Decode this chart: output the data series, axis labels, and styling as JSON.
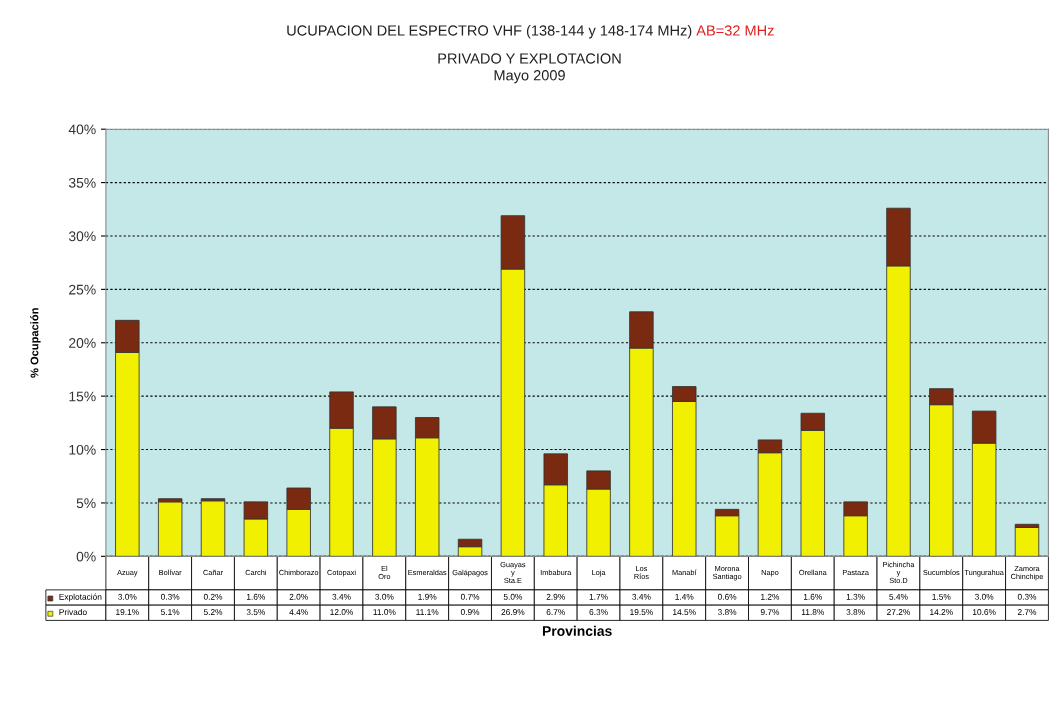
{
  "chart_data": {
    "type": "bar",
    "title": "UCUPACION DEL ESPECTRO VHF (138-144 y 148-174 MHz)",
    "subtitle": "PRIVADO Y EXPLOTACION\nMayo 2009",
    "annotations": [
      "AB=32 MHz"
    ],
    "xlabel": "Provincias",
    "ylabel": "% Ocupación",
    "categories": [
      "Azuay",
      "Bolívar",
      "Cañar",
      "Carchi",
      "Chimborazo",
      "Cotopaxi",
      "El Oro",
      "Esmeraldas",
      "Galápagos",
      "Guayas y Sta.E",
      "Imbabura",
      "Loja",
      "Los Ríos",
      "Manabí",
      "Morona Santiago",
      "Napo",
      "Orellana",
      "Pastaza",
      "Pichincha y Sto.D",
      "Sucumbíos",
      "Tungurahua",
      "Zamora Chinchipe"
    ],
    "stacked": true,
    "series": [
      {
        "name": "Privado",
        "color": "#f0f000",
        "values": [
          19.1,
          5.1,
          5.2,
          3.5,
          4.4,
          12.0,
          11.0,
          11.1,
          0.9,
          26.9,
          6.7,
          6.3,
          19.5,
          14.5,
          3.8,
          9.7,
          11.8,
          3.8,
          27.2,
          14.2,
          10.6,
          2.7
        ],
        "value_labels": [
          "19.1%",
          "5.1%",
          "5.2%",
          "3.5%",
          "4.4%",
          "12.0%",
          "11.0%",
          "11.1%",
          "0.9%",
          "26.9%",
          "6.7%",
          "6.3%",
          "19.5%",
          "14.5%",
          "3.8%",
          "9.7%",
          "11.8%",
          "3.8%",
          "27.2%",
          "14.2%",
          "10.6%",
          "2.7%"
        ]
      },
      {
        "name": "Explotación",
        "color": "#7a2a10",
        "values": [
          3.0,
          0.3,
          0.2,
          1.6,
          2.0,
          3.4,
          3.0,
          1.9,
          0.7,
          5.0,
          2.9,
          1.7,
          3.4,
          1.4,
          0.6,
          1.2,
          1.6,
          1.3,
          5.4,
          1.5,
          3.0,
          0.3
        ],
        "value_labels": [
          "3.0%",
          "0.3%",
          "0.2%",
          "1.6%",
          "2.0%",
          "3.4%",
          "3.0%",
          "1.9%",
          "0.7%",
          "5.0%",
          "2.9%",
          "1.7%",
          "3.4%",
          "1.4%",
          "0.6%",
          "1.2%",
          "1.6%",
          "1.3%",
          "5.4%",
          "1.5%",
          "3.0%",
          "0.3%"
        ]
      }
    ],
    "ylim": [
      0,
      40
    ],
    "yticks": [
      {
        "value": 0,
        "label": "0%"
      },
      {
        "value": 5,
        "label": "5%"
      },
      {
        "value": 10,
        "label": "10%"
      },
      {
        "value": 15,
        "label": "15%"
      },
      {
        "value": 20,
        "label": "20%"
      },
      {
        "value": 25,
        "label": "25%"
      },
      {
        "value": 30,
        "label": "30%"
      },
      {
        "value": 35,
        "label": "35%"
      },
      {
        "value": 40,
        "label": "40%"
      }
    ],
    "grid": "y",
    "legend": "bottom"
  }
}
